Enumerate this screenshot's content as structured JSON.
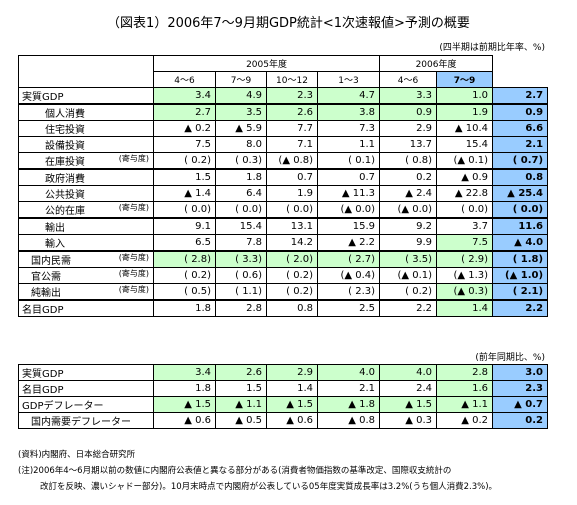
{
  "title": "（図表1）2006年7～9月期GDP統計<1次速報値>予測の概要",
  "unit_note": "(四半期は前期比年率、%)",
  "header": {
    "fy2005": "2005年度",
    "fy2006": "2006年度",
    "quarters": [
      "4～6",
      "7～9",
      "10～12",
      "1～3",
      "4～6",
      "7～9"
    ]
  },
  "table": {
    "rows": [
      {
        "label": "実質GDP",
        "cells": [
          "3.4",
          "4.9",
          "2.3",
          "4.7",
          "3.3",
          "1.0",
          "2.7"
        ]
      },
      {
        "label": "個人消費",
        "cells": [
          "2.7",
          "3.5",
          "2.6",
          "3.8",
          "0.9",
          "1.9",
          "0.9"
        ]
      },
      {
        "label": "住宅投資",
        "cells": [
          "▲ 0.2",
          "▲ 5.9",
          "7.7",
          "7.3",
          "2.9",
          "▲ 10.4",
          "6.6"
        ]
      },
      {
        "label": "設備投資",
        "cells": [
          "7.5",
          "8.0",
          "7.1",
          "1.1",
          "13.7",
          "15.4",
          "2.1"
        ]
      },
      {
        "label": "在庫投資",
        "sublabel": "(寄与度)",
        "cells": [
          "( 0.2)",
          "( 0.3)",
          "(▲ 0.8)",
          "( 0.1)",
          "( 0.8)",
          "(▲ 0.1)",
          "( 0.7)"
        ]
      },
      {
        "label": "政府消費",
        "cells": [
          "1.5",
          "1.8",
          "0.7",
          "0.7",
          "0.2",
          "▲ 0.9",
          "0.8"
        ]
      },
      {
        "label": "公共投資",
        "cells": [
          "▲ 1.4",
          "6.4",
          "1.9",
          "▲ 11.3",
          "▲ 2.4",
          "▲ 22.8",
          "▲ 25.4"
        ]
      },
      {
        "label": "公的在庫",
        "sublabel": "(寄与度)",
        "cells": [
          "( 0.0)",
          "( 0.0)",
          "( 0.0)",
          "(▲ 0.0)",
          "(▲ 0.0)",
          "( 0.0)",
          "( 0.0)"
        ]
      },
      {
        "label": "輸出",
        "cells": [
          "9.1",
          "15.4",
          "13.1",
          "15.9",
          "9.2",
          "3.7",
          "11.6"
        ]
      },
      {
        "label": "輸入",
        "cells": [
          "6.5",
          "7.8",
          "14.2",
          "▲ 2.2",
          "9.9",
          "7.5",
          "▲ 4.0"
        ]
      },
      {
        "label": "国内民需",
        "sublabel": "(寄与度)",
        "cells": [
          "( 2.8)",
          "( 3.3)",
          "( 2.0)",
          "( 2.7)",
          "( 3.5)",
          "( 2.9)",
          "( 1.8)"
        ]
      },
      {
        "label": "官公需",
        "sublabel": "(寄与度)",
        "cells": [
          "( 0.2)",
          "( 0.6)",
          "( 0.2)",
          "(▲ 0.4)",
          "(▲ 0.1)",
          "(▲ 1.3)",
          "(▲ 1.0)"
        ]
      },
      {
        "label": "純輸出",
        "sublabel": "(寄与度)",
        "cells": [
          "( 0.5)",
          "( 1.1)",
          "( 0.2)",
          "( 2.3)",
          "( 0.2)",
          "(▲ 0.3)",
          "( 2.1)"
        ]
      },
      {
        "label": "名目GDP",
        "cells": [
          "1.8",
          "2.8",
          "0.8",
          "2.5",
          "2.2",
          "1.4",
          "2.2"
        ]
      }
    ]
  },
  "yoy_note": "(前年同期比、%)",
  "yoy_table": {
    "rows": [
      {
        "label": "実質GDP",
        "cells": [
          "3.4",
          "2.6",
          "2.9",
          "4.0",
          "4.0",
          "2.8",
          "3.0"
        ]
      },
      {
        "label": "名目GDP",
        "cells": [
          "1.8",
          "1.5",
          "1.4",
          "2.1",
          "2.4",
          "1.6",
          "2.3"
        ]
      },
      {
        "label": "GDPデフレーター",
        "cells": [
          "▲ 1.5",
          "▲ 1.1",
          "▲ 1.5",
          "▲ 1.8",
          "▲ 1.5",
          "▲ 1.1",
          "▲ 0.7"
        ]
      },
      {
        "label": "国内需要デフレーター",
        "cells": [
          "▲ 0.6",
          "▲ 0.5",
          "▲ 0.6",
          "▲ 0.8",
          "▲ 0.3",
          "▲ 0.2",
          "0.2"
        ]
      }
    ]
  },
  "notes": [
    "(資料)内閣府、日本総合研究所",
    "(注)2006年4～6月期以前の数値に内閣府公表値と異なる部分がある(消費者物価指数の基準改定、国際収支統計の",
    "改訂を反映、濃いシャドー部分)。10月末時点で内閣府が公表している05年度実質成長率は3.2%(うち個人消費2.3%)。"
  ]
}
